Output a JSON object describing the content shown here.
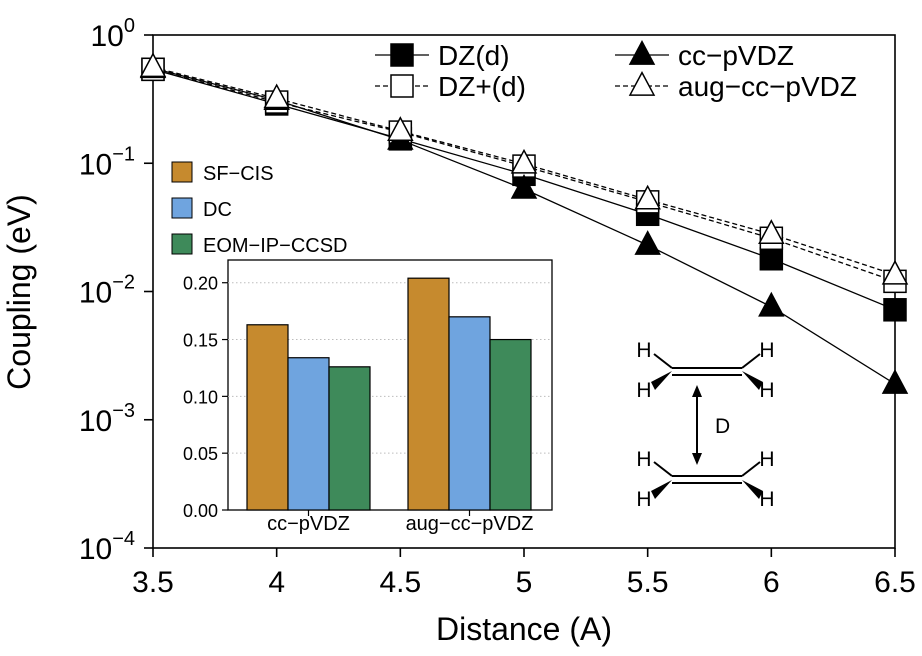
{
  "colors": {
    "sf_cis": "#C68A2E",
    "dc": "#6FA4DF",
    "eom": "#3E8A5A"
  },
  "chart_data": [
    {
      "type": "line",
      "xlabel": "Distance (A)",
      "ylabel": "Coupling (eV)",
      "yscale": "log",
      "xlim": [
        3.5,
        6.5
      ],
      "ylim": [
        0.0001,
        1
      ],
      "x_ticks": [
        "3.5",
        "4",
        "4.5",
        "5",
        "5.5",
        "6",
        "6.5"
      ],
      "y_ticks": [
        {
          "base": "10",
          "exp": "0",
          "value": 1
        },
        {
          "base": "10",
          "exp": "−1",
          "value": 0.1
        },
        {
          "base": "10",
          "exp": "−2",
          "value": 0.01
        },
        {
          "base": "10",
          "exp": "−3",
          "value": 0.001
        },
        {
          "base": "10",
          "exp": "−4",
          "value": 0.0001
        }
      ],
      "legend_position": "top-right",
      "x": [
        3.5,
        4.0,
        4.5,
        5.0,
        5.5,
        6.0,
        6.5
      ],
      "series": [
        {
          "name": "DZ(d)",
          "marker": "square",
          "filled": true,
          "dashed": false,
          "values": [
            0.54,
            0.29,
            0.155,
            0.082,
            0.04,
            0.018,
            0.0072
          ]
        },
        {
          "name": "DZ+(d)",
          "marker": "square",
          "filled": false,
          "dashed": true,
          "values": [
            0.54,
            0.3,
            0.175,
            0.095,
            0.05,
            0.026,
            0.012
          ]
        },
        {
          "name": "cc−pVDZ",
          "marker": "triangle",
          "filled": true,
          "dashed": false,
          "values": [
            0.55,
            0.31,
            0.152,
            0.063,
            0.023,
            0.0076,
            0.0019
          ]
        },
        {
          "name": "aug−cc−pVDZ",
          "marker": "triangle",
          "filled": false,
          "dashed": true,
          "values": [
            0.56,
            0.32,
            0.178,
            0.099,
            0.052,
            0.028,
            0.0135
          ]
        }
      ]
    },
    {
      "type": "bar",
      "categories": [
        "cc−pVDZ",
        "aug−cc−pVDZ"
      ],
      "ylim": [
        0,
        0.22
      ],
      "y_ticks": [
        "0.00",
        "0.05",
        "0.10",
        "0.15",
        "0.20"
      ],
      "y_tick_values": [
        0,
        0.05,
        0.1,
        0.15,
        0.2
      ],
      "grid": true,
      "legend_position": "top-left",
      "series": [
        {
          "name": "SF−CIS",
          "values": [
            0.163,
            0.204
          ]
        },
        {
          "name": "DC",
          "values": [
            0.134,
            0.17
          ]
        },
        {
          "name": "EOM−IP−CCSD",
          "values": [
            0.126,
            0.15
          ]
        }
      ]
    }
  ],
  "diagram": {
    "atom_label": "H",
    "distance_label": "D"
  }
}
